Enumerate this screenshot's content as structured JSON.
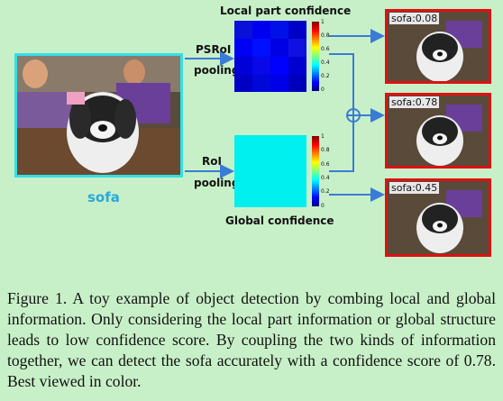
{
  "top_title": "Local part confidence",
  "bottom_title": "Global confidence",
  "psroi_line1": "PSRoI",
  "psroi_line2": "pooling",
  "roi_line1": "RoI",
  "roi_line2": "pooling",
  "input_label": "sofa",
  "outputs": [
    {
      "tag": "sofa:0.08"
    },
    {
      "tag": "sofa:0.78"
    },
    {
      "tag": "sofa:0.45"
    }
  ],
  "colorbar_ticks": [
    "1",
    "0.8",
    "0.6",
    "0.4",
    "0.2",
    "0"
  ],
  "caption": "Figure 1. A toy example of object detection by combing local and global information. Only considering the local part information or global structure leads to low confidence score. By coupling the two kinds of information together, we can detect the sofa accurately with a confidence score of 0.78. Best viewed in color.",
  "colors": {
    "input_border": "#33e0e6",
    "output_border": "#e01010",
    "arrow": "#3a7bd5",
    "global_fill": "#00f0f0"
  }
}
